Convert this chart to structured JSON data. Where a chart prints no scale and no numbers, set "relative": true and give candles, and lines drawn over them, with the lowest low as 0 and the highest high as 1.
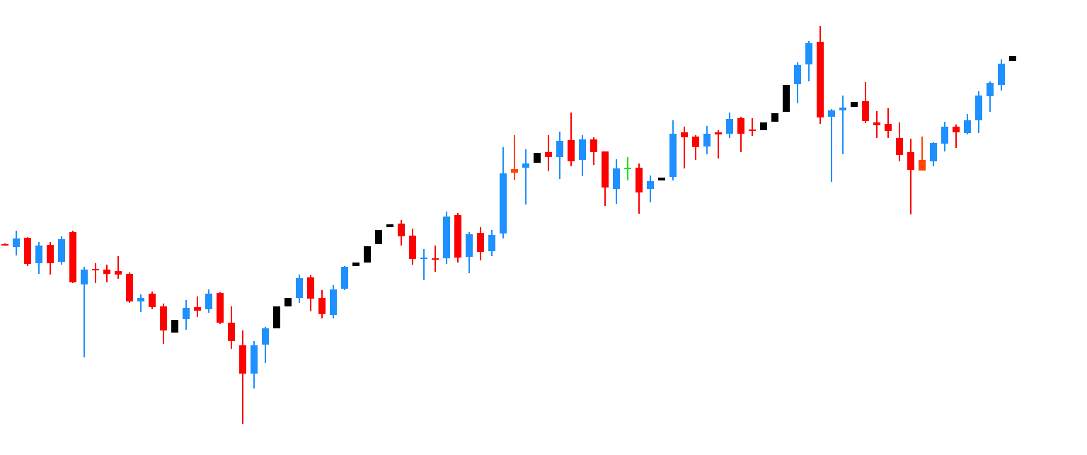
{
  "chart_data": {
    "type": "candlestick",
    "relative": true,
    "categories": [
      null,
      null,
      null,
      null,
      null,
      null,
      null,
      null,
      null,
      null,
      null,
      null,
      null,
      null,
      null,
      null,
      null,
      null,
      null,
      null,
      null,
      null,
      null,
      null,
      null,
      null,
      null,
      null,
      null,
      null,
      null,
      null,
      null,
      null,
      null,
      null,
      null,
      null,
      null,
      null,
      null,
      null,
      null,
      null,
      null,
      null,
      null,
      null,
      null,
      null,
      null,
      null,
      null,
      null,
      null,
      null,
      null,
      null,
      null,
      null,
      null,
      null,
      null,
      null,
      null,
      null,
      null,
      null,
      null,
      null,
      null,
      null,
      null,
      null,
      null,
      null,
      null,
      null,
      null,
      null,
      null,
      null,
      null,
      null,
      null,
      null,
      null,
      null,
      null,
      null
    ],
    "ohlc": [
      [
        0.451,
        0.453,
        0.448,
        0.45
      ],
      [
        0.444,
        0.485,
        0.423,
        0.466
      ],
      [
        0.468,
        0.469,
        0.396,
        0.402
      ],
      [
        0.403,
        0.457,
        0.377,
        0.448
      ],
      [
        0.45,
        0.457,
        0.375,
        0.403
      ],
      [
        0.407,
        0.471,
        0.4,
        0.464
      ],
      [
        0.482,
        0.485,
        0.354,
        0.355
      ],
      [
        0.35,
        0.394,
        0.167,
        0.387
      ],
      [
        0.389,
        0.403,
        0.354,
        0.386
      ],
      [
        0.387,
        0.4,
        0.355,
        0.377
      ],
      [
        0.384,
        0.421,
        0.364,
        0.375
      ],
      [
        0.377,
        0.38,
        0.304,
        0.307
      ],
      [
        0.307,
        0.325,
        0.281,
        0.316
      ],
      [
        0.327,
        0.332,
        0.288,
        0.293
      ],
      [
        0.295,
        0.302,
        0.2,
        0.234
      ],
      [
        0.229,
        0.261,
        0.229,
        0.261
      ],
      [
        0.263,
        0.311,
        0.236,
        0.291
      ],
      [
        0.293,
        0.32,
        0.268,
        0.284
      ],
      [
        0.288,
        0.338,
        0.279,
        0.327
      ],
      [
        0.329,
        0.33,
        0.25,
        0.254
      ],
      [
        0.254,
        0.295,
        0.188,
        0.207
      ],
      [
        0.197,
        0.234,
        0,
        0.126
      ],
      [
        0.126,
        0.207,
        0.088,
        0.197
      ],
      [
        0.199,
        0.243,
        0.152,
        0.24
      ],
      [
        0.24,
        0.295,
        0.24,
        0.295
      ],
      [
        0.295,
        0.316,
        0.295,
        0.316
      ],
      [
        0.316,
        0.375,
        0.304,
        0.366
      ],
      [
        0.368,
        0.373,
        0.282,
        0.314
      ],
      [
        0.316,
        0.336,
        0.264,
        0.275
      ],
      [
        0.273,
        0.348,
        0.264,
        0.338
      ],
      [
        0.339,
        0.396,
        0.336,
        0.395
      ],
      [
        0.396,
        0.405,
        0.396,
        0.405
      ],
      [
        0.405,
        0.446,
        0.405,
        0.446
      ],
      [
        0.451,
        0.487,
        0.451,
        0.487
      ],
      [
        0.494,
        0.501,
        0.494,
        0.501
      ],
      [
        0.503,
        0.512,
        0.448,
        0.471
      ],
      [
        0.473,
        0.491,
        0.4,
        0.414
      ],
      [
        0.414,
        0.439,
        0.361,
        0.418
      ],
      [
        0.416,
        0.448,
        0.382,
        0.414
      ],
      [
        0.416,
        0.533,
        0.402,
        0.521
      ],
      [
        0.525,
        0.53,
        0.405,
        0.418
      ],
      [
        0.419,
        0.482,
        0.378,
        0.476
      ],
      [
        0.48,
        0.494,
        0.411,
        0.432
      ],
      [
        0.434,
        0.487,
        0.421,
        0.475
      ],
      [
        0.478,
        0.695,
        0.466,
        0.63
      ],
      [
        0.631,
        0.726,
        0.614,
        0.64
      ],
      [
        0.644,
        0.69,
        0.551,
        0.655
      ],
      [
        0.656,
        0.681,
        0.656,
        0.681
      ],
      [
        0.683,
        0.726,
        0.635,
        0.671
      ],
      [
        0.671,
        0.735,
        0.615,
        0.711
      ],
      [
        0.713,
        0.783,
        0.647,
        0.66
      ],
      [
        0.663,
        0.726,
        0.622,
        0.715
      ],
      [
        0.715,
        0.72,
        0.651,
        0.683
      ],
      [
        0.685,
        0.685,
        0.548,
        0.594
      ],
      [
        0.59,
        0.665,
        0.553,
        0.642
      ],
      [
        0.644,
        0.671,
        0.612,
        0.644
      ],
      [
        0.644,
        0.655,
        0.528,
        0.581
      ],
      [
        0.59,
        0.624,
        0.557,
        0.61
      ],
      [
        0.612,
        0.619,
        0.612,
        0.619
      ],
      [
        0.621,
        0.763,
        0.612,
        0.729
      ],
      [
        0.733,
        0.747,
        0.642,
        0.72
      ],
      [
        0.722,
        0.726,
        0.663,
        0.695
      ],
      [
        0.697,
        0.749,
        0.678,
        0.729
      ],
      [
        0.733,
        0.738,
        0.667,
        0.728
      ],
      [
        0.729,
        0.783,
        0.719,
        0.767
      ],
      [
        0.768,
        0.772,
        0.683,
        0.729
      ],
      [
        0.74,
        0.768,
        0.724,
        0.736
      ],
      [
        0.738,
        0.758,
        0.738,
        0.758
      ],
      [
        0.76,
        0.781,
        0.76,
        0.781
      ],
      [
        0.785,
        0.852,
        0.785,
        0.852
      ],
      [
        0.854,
        0.909,
        0.806,
        0.902
      ],
      [
        0.904,
        0.963,
        0.861,
        0.957
      ],
      [
        0.961,
        1,
        0.754,
        0.77
      ],
      [
        0.772,
        0.792,
        0.608,
        0.788
      ],
      [
        0.788,
        0.825,
        0.678,
        0.795
      ],
      [
        0.797,
        0.809,
        0.797,
        0.809
      ],
      [
        0.811,
        0.859,
        0.756,
        0.761
      ],
      [
        0.758,
        0.786,
        0.719,
        0.751
      ],
      [
        0.754,
        0.793,
        0.719,
        0.736
      ],
      [
        0.719,
        0.758,
        0.66,
        0.676
      ],
      [
        0.683,
        0.717,
        0.526,
        0.638
      ],
      [
        0.637,
        0.722,
        0.637,
        0.663
      ],
      [
        0.66,
        0.708,
        0.647,
        0.706
      ],
      [
        0.704,
        0.76,
        0.685,
        0.747
      ],
      [
        0.747,
        0.752,
        0.694,
        0.733
      ],
      [
        0.731,
        0.779,
        0.728,
        0.763
      ],
      [
        0.763,
        0.836,
        0.731,
        0.825
      ],
      [
        0.824,
        0.861,
        0.785,
        0.858
      ],
      [
        0.852,
        0.916,
        0.838,
        0.906
      ],
      [
        0.913,
        0.925,
        0.913,
        0.925
      ]
    ],
    "colors": [
      "#ff0000",
      "#1e90ff",
      "#ff0000",
      "#1e90ff",
      "#ff0000",
      "#1e90ff",
      "#ff0000",
      "#1e90ff",
      "#ff0000",
      "#ff0000",
      "#ff0000",
      "#ff0000",
      "#1e90ff",
      "#ff0000",
      "#ff0000",
      "#000000",
      "#1e90ff",
      "#ff0000",
      "#1e90ff",
      "#ff0000",
      "#ff0000",
      "#ff0000",
      "#1e90ff",
      "#1e90ff",
      "#000000",
      "#000000",
      "#1e90ff",
      "#ff0000",
      "#ff0000",
      "#1e90ff",
      "#1e90ff",
      "#000000",
      "#000000",
      "#000000",
      "#000000",
      "#ff0000",
      "#ff0000",
      "#1e90ff",
      "#ff0000",
      "#1e90ff",
      "#ff0000",
      "#1e90ff",
      "#ff0000",
      "#1e90ff",
      "#1e90ff",
      "#ff4500",
      "#1e90ff",
      "#000000",
      "#ff0000",
      "#1e90ff",
      "#ff0000",
      "#1e90ff",
      "#ff0000",
      "#ff0000",
      "#1e90ff",
      "#22dd22",
      "#ff0000",
      "#1e90ff",
      "#000000",
      "#1e90ff",
      "#ff0000",
      "#ff0000",
      "#1e90ff",
      "#ff0000",
      "#1e90ff",
      "#ff0000",
      "#ff0000",
      "#000000",
      "#000000",
      "#000000",
      "#1e90ff",
      "#1e90ff",
      "#ff0000",
      "#1e90ff",
      "#1e90ff",
      "#000000",
      "#ff0000",
      "#ff0000",
      "#ff0000",
      "#ff0000",
      "#ff0000",
      "#ff4500",
      "#1e90ff",
      "#1e90ff",
      "#ff0000",
      "#1e90ff",
      "#1e90ff",
      "#1e90ff",
      "#1e90ff",
      "#000000"
    ]
  }
}
